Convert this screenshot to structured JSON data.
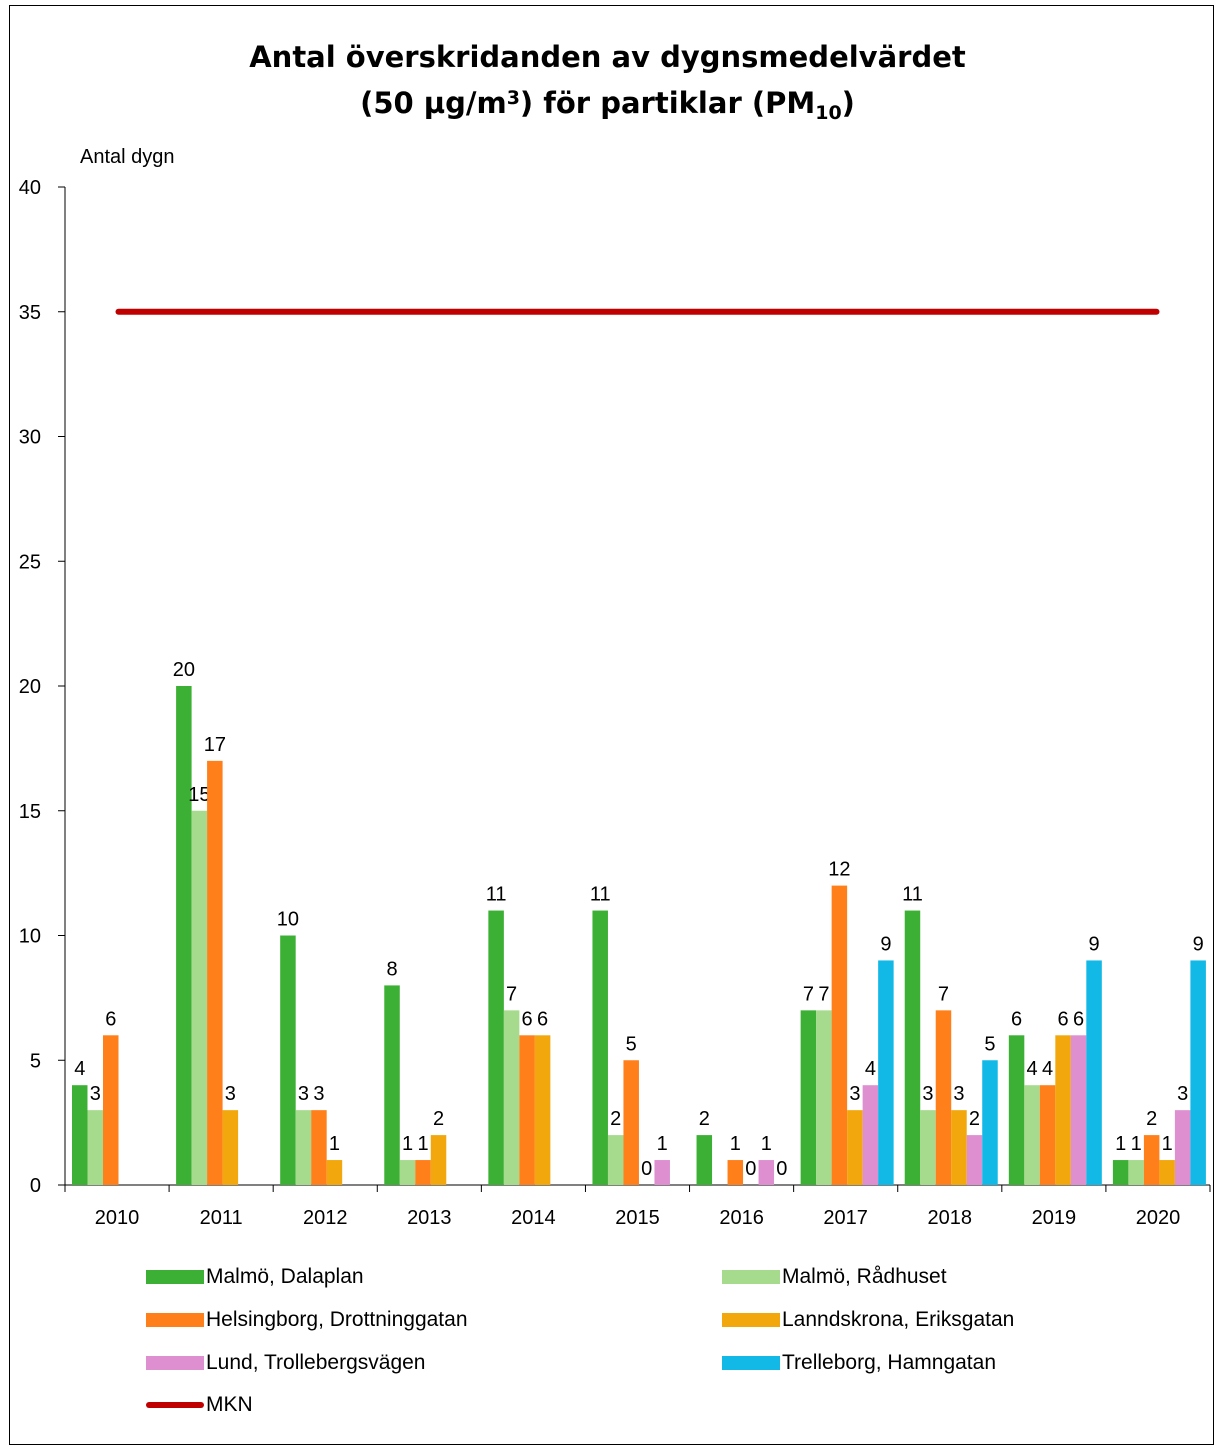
{
  "chart_data": {
    "type": "bar",
    "title_line1": "Antal överskridanden av dygnsmedelvärdet",
    "title_line2_pre": "(50 µg/m",
    "title_line2_sup": "3",
    "title_line2_mid": ") för partiklar (PM",
    "title_line2_sub": "10",
    "title_line2_post": ")",
    "ylabel": "Antal dygn",
    "ylim": [
      0,
      40
    ],
    "yticks": [
      "0",
      "5",
      "10",
      "15",
      "20",
      "25",
      "30",
      "35",
      "40"
    ],
    "categories": [
      "2010",
      "2011",
      "2012",
      "2013",
      "2014",
      "2015",
      "2016",
      "2017",
      "2018",
      "2019",
      "2020"
    ],
    "series": [
      {
        "name": "Malmö, Dalaplan",
        "color": "#3cb034",
        "values": [
          4,
          20,
          10,
          8,
          11,
          11,
          2,
          7,
          11,
          6,
          1
        ]
      },
      {
        "name": "Malmö, Rådhuset",
        "color": "#a6db8e",
        "values": [
          3,
          15,
          3,
          1,
          7,
          2,
          null,
          7,
          3,
          4,
          1
        ]
      },
      {
        "name": "Helsingborg, Drottninggatan",
        "color": "#ff7f1a",
        "values": [
          6,
          17,
          3,
          1,
          6,
          5,
          1,
          12,
          7,
          4,
          2
        ]
      },
      {
        "name": "Lanndskrona, Eriksgatan",
        "color": "#f2a80c",
        "values": [
          null,
          3,
          1,
          2,
          6,
          0,
          0,
          3,
          3,
          6,
          1
        ]
      },
      {
        "name": "Lund, Trollebergsvägen",
        "color": "#dd8fd0",
        "values": [
          null,
          null,
          null,
          null,
          null,
          1,
          1,
          4,
          2,
          6,
          3
        ]
      },
      {
        "name": "Trelleborg, Hamngatan",
        "color": "#12b8e6",
        "values": [
          null,
          null,
          null,
          null,
          null,
          null,
          0,
          9,
          5,
          9,
          9
        ]
      }
    ],
    "reference_line": {
      "name": "MKN",
      "value": 35,
      "color": "#c00000"
    },
    "legend_placement": "bottom",
    "grid": false
  }
}
